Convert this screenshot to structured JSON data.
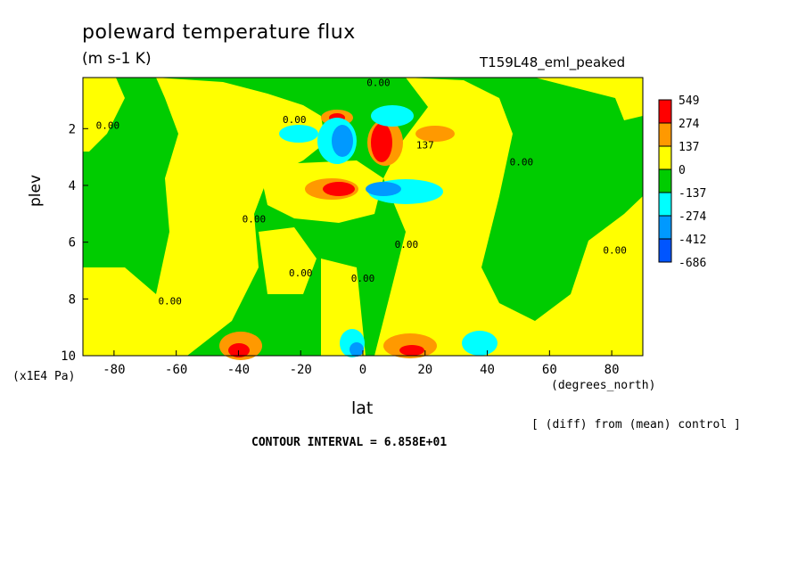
{
  "chart_data": {
    "type": "heatmap",
    "title": "poleward temperature flux",
    "units": "(m s-1 K)",
    "run_label": "T159L48_eml_peaked",
    "xlabel": "lat",
    "x_units": "(degrees_north)",
    "ylabel": "plev",
    "y_units": "(x1E4 Pa)",
    "comparison_note": "[ (diff) from (mean) control ]",
    "contour_interval_text": "CONTOUR INTERVAL = 6.858E+01",
    "xlim": [
      -90,
      90
    ],
    "ylim": [
      10,
      0.2
    ],
    "x_ticks": [
      "-80",
      "-60",
      "-40",
      "-20",
      "0",
      "20",
      "40",
      "60",
      "80"
    ],
    "x_tick_values": [
      -80,
      -60,
      -40,
      -20,
      0,
      20,
      40,
      60,
      80
    ],
    "y_ticks": [
      "2",
      "4",
      "6",
      "8",
      "10"
    ],
    "y_tick_values": [
      2,
      4,
      6,
      8,
      10
    ],
    "colorbar": {
      "labels": [
        "549",
        "274",
        "137",
        "0",
        "-137",
        "-274",
        "-412",
        "-686"
      ],
      "colors": [
        "#ff0000",
        "#ff9900",
        "#ffff00",
        "#00cc00",
        "#00ffff",
        "#0099ff",
        "#0055ff"
      ]
    },
    "contour_labels": [
      {
        "text": "0.00",
        "lat": -82,
        "plev": 2.0
      },
      {
        "text": "0.00",
        "lat": -62,
        "plev": 8.2
      },
      {
        "text": "0.00",
        "lat": -35,
        "plev": 5.3
      },
      {
        "text": "0.00",
        "lat": -20,
        "plev": 7.2
      },
      {
        "text": "0.00",
        "lat": -22,
        "plev": 1.8
      },
      {
        "text": "0.00",
        "lat": 0,
        "plev": 7.4
      },
      {
        "text": "0.00",
        "lat": 14,
        "plev": 6.2
      },
      {
        "text": "0.00",
        "lat": 5,
        "plev": 0.5
      },
      {
        "text": "0.00",
        "lat": 51,
        "plev": 3.3
      },
      {
        "text": "0.00",
        "lat": 81,
        "plev": 6.4
      },
      {
        "text": "137",
        "lat": 20,
        "plev": 2.7
      }
    ],
    "features": [
      {
        "lat": -9,
        "plev": 1.5,
        "value": 274
      },
      {
        "lat": -3,
        "plev": 1.3,
        "value": 549
      },
      {
        "lat": -10,
        "plev": 2.4,
        "value": -274
      },
      {
        "lat": -5,
        "plev": 2.0,
        "value": -412
      },
      {
        "lat": 3,
        "plev": 1.6,
        "value": -274
      },
      {
        "lat": 4,
        "plev": 2.4,
        "value": 549
      },
      {
        "lat": 10,
        "plev": 2.2,
        "value": 274
      },
      {
        "lat": 10,
        "plev": 1.3,
        "value": -274
      },
      {
        "lat": -10,
        "plev": 4.0,
        "value": 549
      },
      {
        "lat": 7,
        "plev": 4.2,
        "value": -412
      },
      {
        "lat": 18,
        "plev": 4.2,
        "value": -137
      },
      {
        "lat": -36,
        "plev": 9.8,
        "value": 274
      },
      {
        "lat": -5,
        "plev": 9.7,
        "value": -412
      },
      {
        "lat": 15,
        "plev": 9.7,
        "value": 274
      },
      {
        "lat": 38,
        "plev": 9.7,
        "value": -274
      }
    ]
  }
}
